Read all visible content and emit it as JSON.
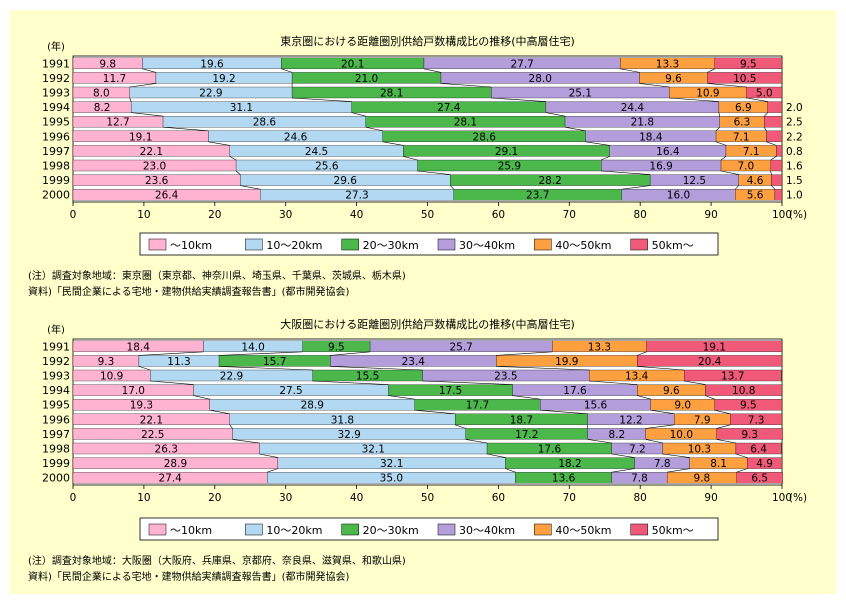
{
  "charts": [
    {
      "title": "東京圏における距離圏別供給戸数構成比の推移(中高層住宅)",
      "year_unit": "(年)",
      "x_unit": "(%)",
      "note": "(注）調査対象地域：東京圏（東京都、神奈川県、埼玉県、千葉県、茨城県、栃木県)",
      "source": "資料)「民間企業による宅地・建物供給実績調査報告書」(都市開発協会)"
    },
    {
      "title": "大阪圏における距離圏別供給戸数構成比の推移(中高層住宅)",
      "year_unit": "(年)",
      "x_unit": "(%)",
      "note": "(注）調査対象地域：大阪圏（大阪府、兵庫県、京都府、奈良県、滋賀県、和歌山県)",
      "source": "資料)「民間企業による宅地・建物供給実績調査報告書」(都市開発協会)"
    }
  ],
  "chart_data": [
    {
      "type": "bar",
      "orientation": "horizontal",
      "stacked": true,
      "title": "東京圏における距離圏別供給戸数構成比の推移(中高層住宅)",
      "categories": [
        "1991",
        "1992",
        "1993",
        "1994",
        "1995",
        "1996",
        "1997",
        "1998",
        "1999",
        "2000"
      ],
      "xlim": [
        0,
        100
      ],
      "x_ticks": [
        "0",
        "10",
        "20",
        "30",
        "40",
        "50",
        "60",
        "70",
        "80",
        "90",
        "100"
      ],
      "legend_position": "bottom",
      "series": [
        {
          "name": "～10km",
          "color": "#ffb3d1",
          "values": [
            9.8,
            11.7,
            8.0,
            8.2,
            12.7,
            19.1,
            22.1,
            23.0,
            23.6,
            26.4
          ]
        },
        {
          "name": "10～20km",
          "color": "#b3d9f2",
          "values": [
            19.6,
            19.2,
            22.9,
            31.1,
            28.6,
            24.6,
            24.5,
            25.6,
            29.6,
            27.3
          ]
        },
        {
          "name": "20～30km",
          "color": "#4cb84c",
          "values": [
            20.1,
            21.0,
            28.1,
            27.4,
            28.1,
            28.6,
            29.1,
            25.9,
            28.2,
            23.7
          ]
        },
        {
          "name": "30～40km",
          "color": "#b39ddb",
          "values": [
            27.7,
            28.0,
            25.1,
            24.4,
            21.8,
            18.4,
            16.4,
            16.9,
            12.5,
            16.0
          ]
        },
        {
          "name": "40～50km",
          "color": "#ffa040",
          "values": [
            13.3,
            9.6,
            10.9,
            6.9,
            6.3,
            7.1,
            7.1,
            7.0,
            4.6,
            5.6
          ]
        },
        {
          "name": "50km～",
          "color": "#f05a78",
          "values": [
            9.5,
            10.5,
            5.0,
            2.0,
            2.5,
            2.2,
            0.8,
            1.6,
            1.5,
            1.0
          ]
        }
      ]
    },
    {
      "type": "bar",
      "orientation": "horizontal",
      "stacked": true,
      "title": "大阪圏における距離圏別供給戸数構成比の推移(中高層住宅)",
      "categories": [
        "1991",
        "1992",
        "1993",
        "1994",
        "1995",
        "1996",
        "1997",
        "1998",
        "1999",
        "2000"
      ],
      "xlim": [
        0,
        100
      ],
      "x_ticks": [
        "0",
        "10",
        "20",
        "30",
        "40",
        "50",
        "60",
        "70",
        "80",
        "90",
        "100"
      ],
      "legend_position": "bottom",
      "series": [
        {
          "name": "～10km",
          "color": "#ffb3d1",
          "values": [
            18.4,
            9.3,
            10.9,
            17.0,
            19.3,
            22.1,
            22.5,
            26.3,
            28.9,
            27.4
          ]
        },
        {
          "name": "10～20km",
          "color": "#b3d9f2",
          "values": [
            14.0,
            11.3,
            22.9,
            27.5,
            28.9,
            31.8,
            32.9,
            32.1,
            32.1,
            35.0
          ]
        },
        {
          "name": "20～30km",
          "color": "#4cb84c",
          "values": [
            9.5,
            15.7,
            15.5,
            17.5,
            17.7,
            18.7,
            17.2,
            17.6,
            18.2,
            13.6
          ]
        },
        {
          "name": "30～40km",
          "color": "#b39ddb",
          "values": [
            25.7,
            23.4,
            23.5,
            17.6,
            15.6,
            12.2,
            8.2,
            7.2,
            7.8,
            7.8
          ]
        },
        {
          "name": "40～50km",
          "color": "#ffa040",
          "values": [
            13.3,
            19.9,
            13.4,
            9.6,
            9.0,
            7.9,
            10.0,
            10.3,
            8.1,
            9.8
          ]
        },
        {
          "name": "50km～",
          "color": "#f05a78",
          "values": [
            19.1,
            20.4,
            13.7,
            10.8,
            9.5,
            7.3,
            9.3,
            6.4,
            4.9,
            6.5
          ]
        }
      ]
    }
  ]
}
